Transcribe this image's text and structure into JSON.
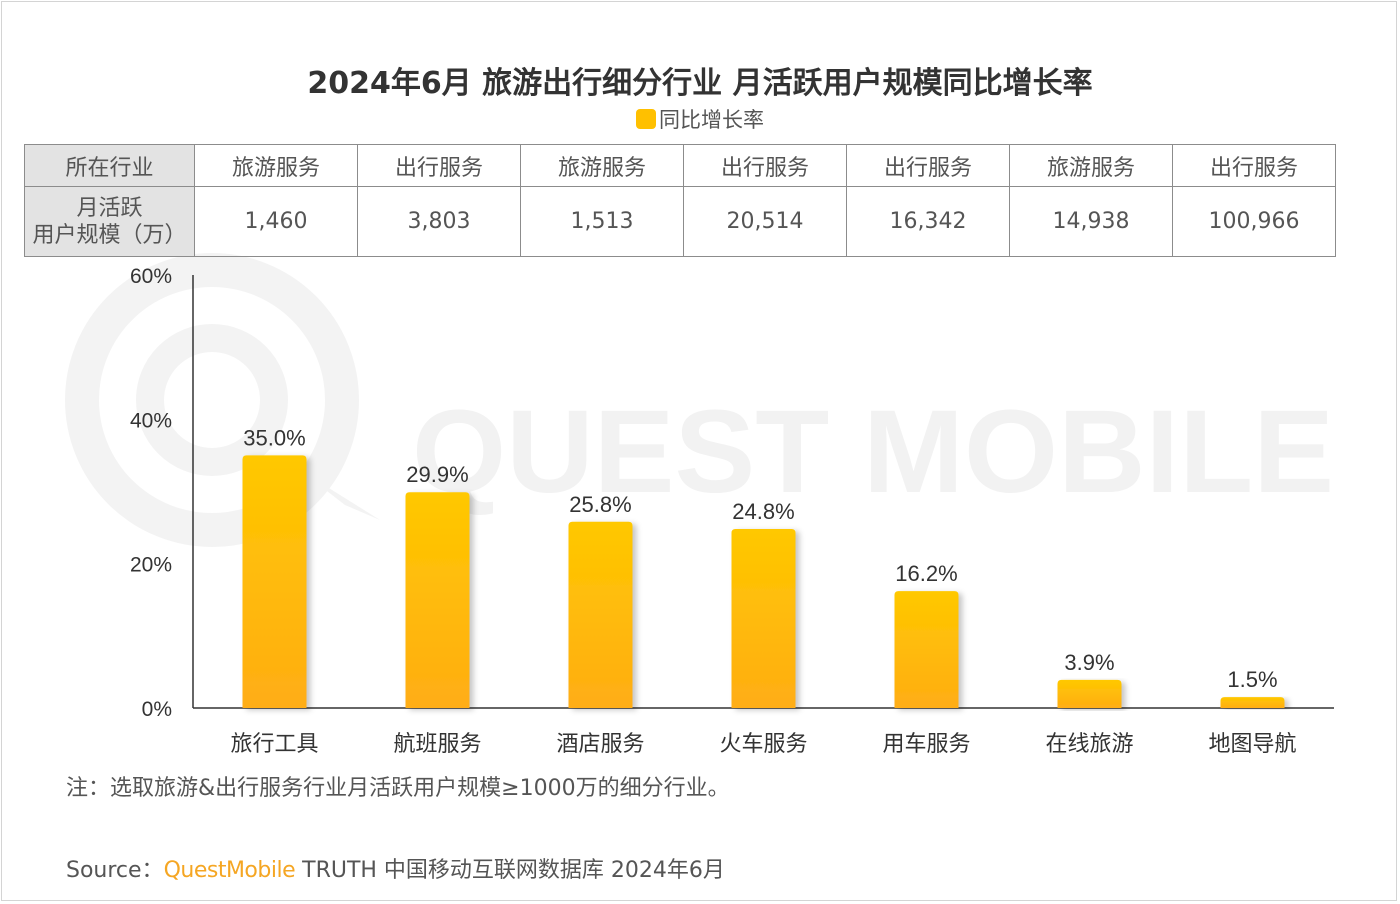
{
  "title": "2024年6月 旅游出行细分行业 月活跃用户规模同比增长率",
  "legend_label": "同比增长率",
  "colors": {
    "bar_top": "#ffc800",
    "bar_bottom": "#ffad14",
    "brand": "#f5a623",
    "watermark": "#f2f2f2"
  },
  "watermark_text": "QUEST MOBILE",
  "table": {
    "row1_header": "所在行业",
    "row2_header_line1": "月活跃",
    "row2_header_line2": "用户规模（万）",
    "sectors": [
      "旅游服务",
      "出行服务",
      "旅游服务",
      "出行服务",
      "出行服务",
      "旅游服务",
      "出行服务"
    ],
    "mau": [
      "1,460",
      "3,803",
      "1,513",
      "20,514",
      "16,342",
      "14,938",
      "100,966"
    ]
  },
  "chart_data": {
    "type": "bar",
    "categories": [
      "旅行工具",
      "航班服务",
      "酒店服务",
      "火车服务",
      "用车服务",
      "在线旅游",
      "地图导航"
    ],
    "series": [
      {
        "name": "同比增长率",
        "values": [
          35.0,
          29.9,
          25.8,
          24.8,
          16.2,
          3.9,
          1.5
        ]
      }
    ],
    "value_labels": [
      "35.0%",
      "29.9%",
      "25.8%",
      "24.8%",
      "16.2%",
      "3.9%",
      "1.5%"
    ],
    "y_ticks": [
      0,
      20,
      40,
      60
    ],
    "y_tick_labels": [
      "0%",
      "20%",
      "40%",
      "60%"
    ],
    "ylim": [
      0,
      60
    ],
    "grid": false,
    "legend_position": "top-center"
  },
  "note": "注：选取旅游&出行服务行业月活跃用户规模≥1000万的细分行业。",
  "source": {
    "label": "Source：",
    "brand": "QuestMobile",
    "rest": "TRUTH 中国移动互联网数据库 2024年6月"
  }
}
